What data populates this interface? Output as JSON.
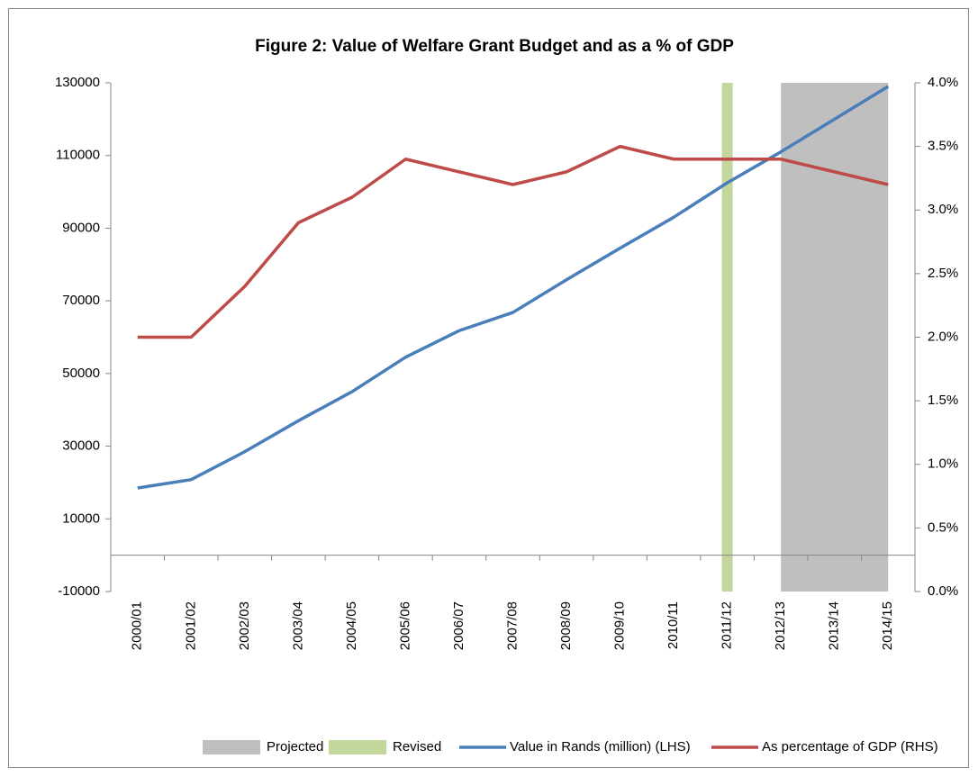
{
  "chart_data": {
    "type": "combo",
    "title": "Figure 2: Value of Welfare Grant Budget and as a % of GDP",
    "categories": [
      "2000/01",
      "2001/02",
      "2002/03",
      "2003/04",
      "2004/05",
      "2005/06",
      "2006/07",
      "2007/08",
      "2008/09",
      "2009/10",
      "2010/11",
      "2011/12",
      "2012/13",
      "2013/14",
      "2014/15"
    ],
    "series": [
      {
        "name": "Projected",
        "type": "area",
        "axis": "y2",
        "color": "#bfbfbf",
        "values": [
          null,
          null,
          null,
          null,
          null,
          null,
          null,
          null,
          null,
          null,
          null,
          null,
          4.0,
          4.0,
          4.0
        ]
      },
      {
        "name": "Revised",
        "type": "bar",
        "axis": "y2",
        "color": "#c3d69b",
        "values": [
          null,
          null,
          null,
          null,
          null,
          null,
          null,
          null,
          null,
          null,
          null,
          4.0,
          null,
          null,
          null
        ]
      },
      {
        "name": "Value in Rands (million) (LHS)",
        "type": "line",
        "color": "#4a7ebb",
        "values": [
          18500,
          20800,
          28500,
          37000,
          45000,
          54500,
          61800,
          66800,
          75800,
          84500,
          93000,
          102500,
          111000,
          120000,
          129000
        ]
      },
      {
        "name": "As percentage of GDP (RHS)",
        "type": "line",
        "axis": "y2",
        "color": "#be4b48",
        "values": [
          2.0,
          2.0,
          2.4,
          2.9,
          3.1,
          3.4,
          3.3,
          3.2,
          3.3,
          3.5,
          3.4,
          3.4,
          3.4,
          3.3,
          3.2
        ]
      }
    ],
    "ylim": [
      -10000,
      130000
    ],
    "yticks": [
      -10000,
      10000,
      30000,
      50000,
      70000,
      90000,
      110000,
      130000
    ],
    "y2lim": [
      0,
      4.0
    ],
    "y2ticks": [
      {
        "value": 0,
        "label": "0.0%"
      },
      {
        "value": 0.5,
        "label": "0.5%"
      },
      {
        "value": 1.0,
        "label": "1.0%"
      },
      {
        "value": 1.5,
        "label": "1.5%"
      },
      {
        "value": 2.0,
        "label": "2.0%"
      },
      {
        "value": 2.5,
        "label": "2.5%"
      },
      {
        "value": 3.0,
        "label": "3.0%"
      },
      {
        "value": 3.5,
        "label": "3.5%"
      },
      {
        "value": 4.0,
        "label": "4.0%"
      }
    ],
    "grid": false,
    "legend": "bottom"
  }
}
